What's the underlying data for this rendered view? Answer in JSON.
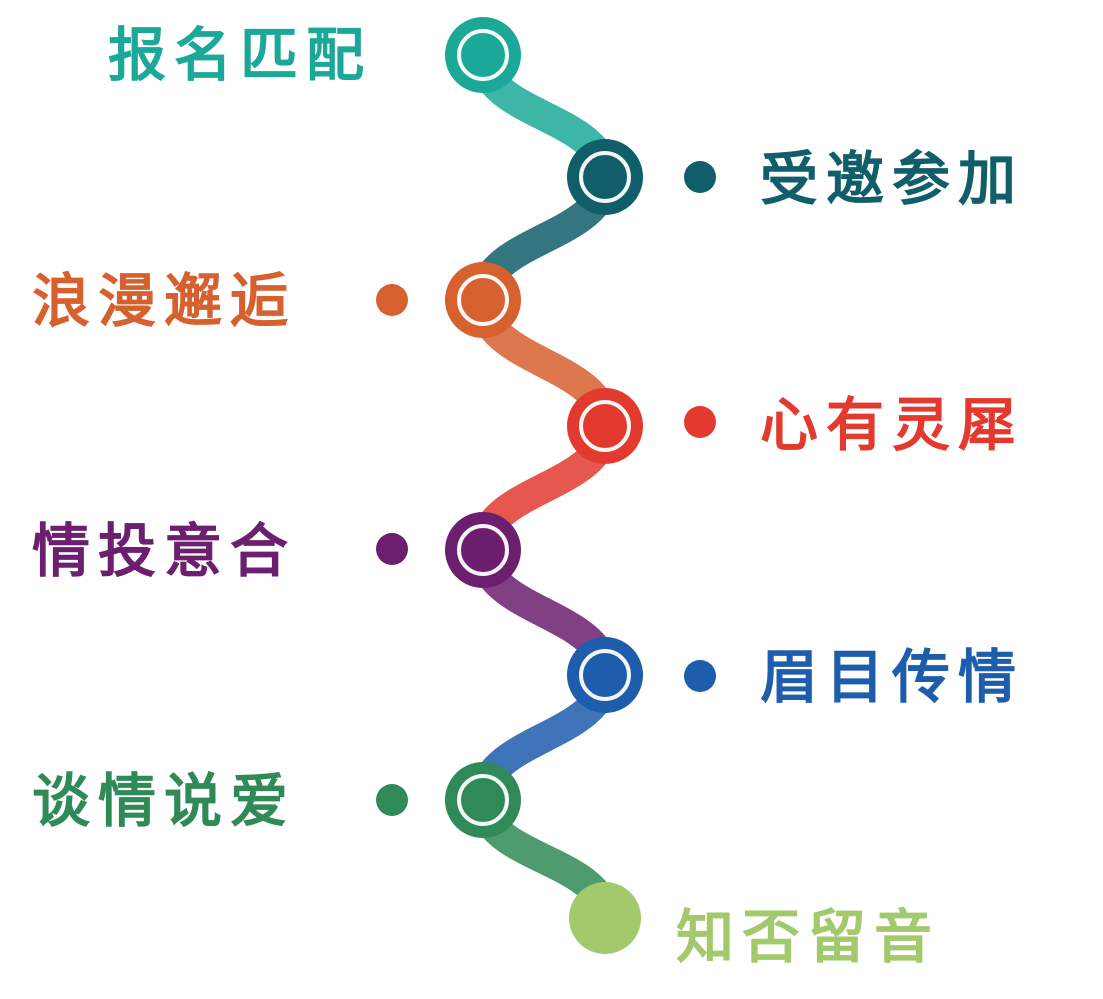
{
  "steps": [
    {
      "label": "报名匹配",
      "color": "#1ba898"
    },
    {
      "label": "受邀参加",
      "color": "#0f5e6a"
    },
    {
      "label": "浪漫邂逅",
      "color": "#d7602f"
    },
    {
      "label": "心有灵犀",
      "color": "#e23a2e"
    },
    {
      "label": "情投意合",
      "color": "#6b1f6e"
    },
    {
      "label": "眉目传情",
      "color": "#1e5cac"
    },
    {
      "label": "谈情说爱",
      "color": "#2f8a57"
    },
    {
      "label": "知否留音",
      "color": "#a3c96d"
    }
  ]
}
